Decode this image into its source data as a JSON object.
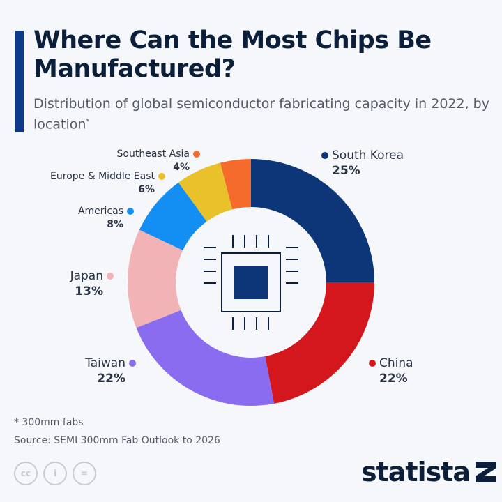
{
  "title": "Where Can the Most Chips Be Manufactured?",
  "subtitle": "Distribution of global semiconductor fabricating capacity in 2022, by location",
  "subtitle_mark": "*",
  "footnote": "* 300mm fabs",
  "source": "Source: SEMI 300mm Fab Outlook to 2026",
  "brand": "statista",
  "license_icons": [
    "cc-icon",
    "by-icon",
    "nd-icon"
  ],
  "license_text": [
    "cc",
    "i",
    "="
  ],
  "center_icon": "chip-icon",
  "background": "#f5f7fa",
  "chart_data": {
    "type": "pie",
    "variant": "donut",
    "title": "Where Can the Most Chips Be Manufactured?",
    "unit": "%",
    "start": "top, clockwise",
    "slices": [
      {
        "label": "South Korea",
        "value": 25,
        "display": "25%",
        "color": "#0d3678"
      },
      {
        "label": "China",
        "value": 22,
        "display": "22%",
        "color": "#d3171c"
      },
      {
        "label": "Taiwan",
        "value": 22,
        "display": "22%",
        "color": "#8a6cf0"
      },
      {
        "label": "Japan",
        "value": 13,
        "display": "13%",
        "color": "#f2b3b6"
      },
      {
        "label": "Americas",
        "value": 8,
        "display": "8%",
        "color": "#138ef2"
      },
      {
        "label": "Europe & Middle East",
        "value": 6,
        "display": "6%",
        "color": "#e8c12b"
      },
      {
        "label": "Southeast Asia",
        "value": 4,
        "display": "4%",
        "color": "#f46b2c"
      }
    ]
  }
}
